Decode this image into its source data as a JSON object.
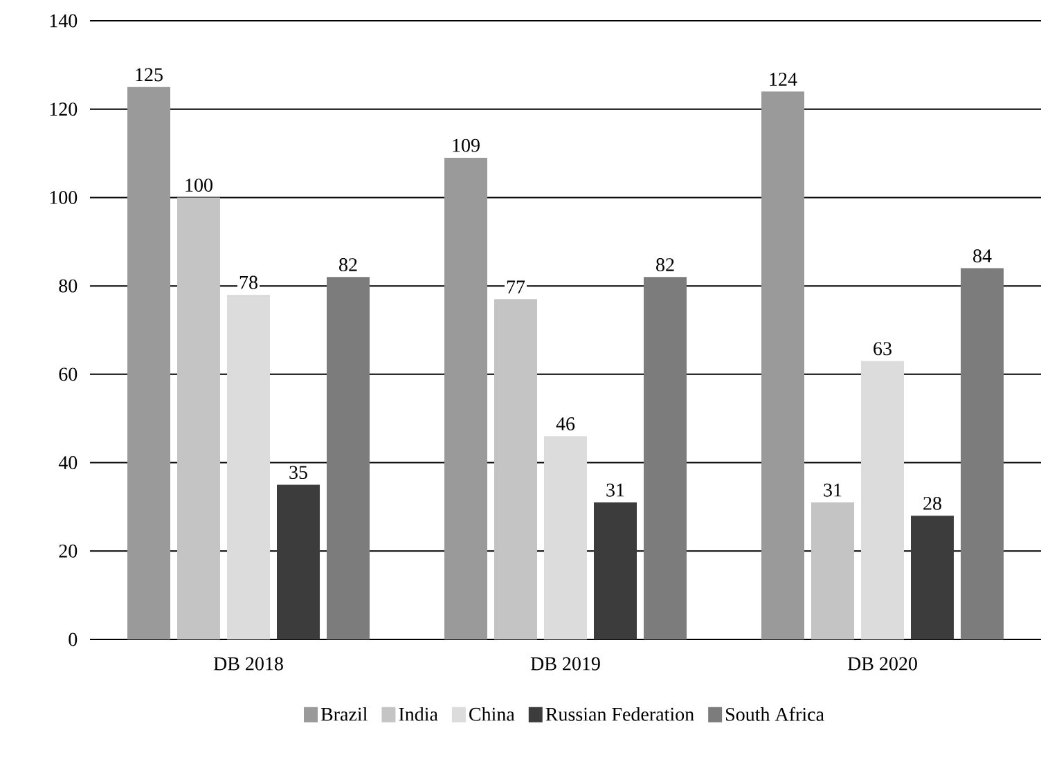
{
  "chart_data": {
    "type": "bar",
    "categories": [
      "DB 2018",
      "DB 2019",
      "DB 2020"
    ],
    "series": [
      {
        "name": "Brazil",
        "color": "#9a9a9a",
        "values": [
          125,
          109,
          124
        ]
      },
      {
        "name": "India",
        "color": "#c4c4c4",
        "values": [
          100,
          77,
          31
        ]
      },
      {
        "name": "China",
        "color": "#dcdcdc",
        "values": [
          78,
          46,
          63
        ]
      },
      {
        "name": "Russian Federation",
        "color": "#3c3c3c",
        "values": [
          35,
          31,
          28
        ]
      },
      {
        "name": "South Africa",
        "color": "#7c7c7c",
        "values": [
          82,
          82,
          84
        ]
      }
    ],
    "ylim": [
      0,
      140
    ],
    "yticks": [
      0,
      20,
      40,
      60,
      80,
      100,
      120,
      140
    ],
    "grid": "y",
    "legend": "bottom",
    "data_labels": true
  }
}
